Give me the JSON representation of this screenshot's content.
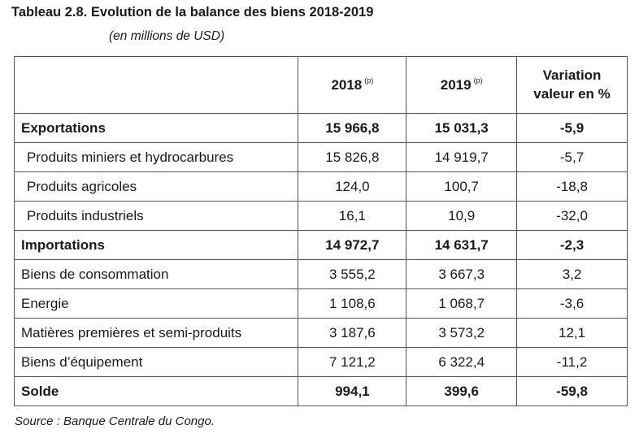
{
  "title": "Tableau 2.8. Evolution de la balance des biens 2018-2019",
  "subtitle": "(en millions de USD)",
  "headers": {
    "col1": "2018",
    "col1_note": "(p)",
    "col2": "2019",
    "col2_note": "(p)",
    "col3_line1": "Variation",
    "col3_line2": "valeur en %"
  },
  "rows": [
    {
      "label": "Exportations",
      "v2018": "15 966,8",
      "v2019": "15 031,3",
      "var": "-5,9",
      "bold": true
    },
    {
      "label": "Produits miniers et hydrocarbures",
      "v2018": "15 826,8",
      "v2019": "14 919,7",
      "var": "-5,7",
      "sub": true
    },
    {
      "label": "Produits agricoles",
      "v2018": "124,0",
      "v2019": "100,7",
      "var": "-18,8",
      "sub": true
    },
    {
      "label": "Produits industriels",
      "v2018": "16,1",
      "v2019": "10,9",
      "var": "-32,0",
      "sub": true
    },
    {
      "label": "Importations",
      "v2018": "14 972,7",
      "v2019": "14 631,7",
      "var": "-2,3",
      "bold": true
    },
    {
      "label": "Biens de consommation",
      "v2018": "3 555,2",
      "v2019": "3 667,3",
      "var": "3,2"
    },
    {
      "label": "Energie",
      "v2018": "1 108,6",
      "v2019": "1 068,7",
      "var": "-3,6"
    },
    {
      "label": "Matières premières et semi-produits",
      "v2018": "3 187,6",
      "v2019": "3 573,2",
      "var": "12,1"
    },
    {
      "label": "Biens d’équipement",
      "v2018": "7 121,2",
      "v2019": "6 322,4",
      "var": "-11,2"
    },
    {
      "label": "Solde",
      "v2018": "994,1",
      "v2019": "399,6",
      "var": "-59,8",
      "bold": true
    }
  ],
  "source": "Source : Banque Centrale du Congo."
}
